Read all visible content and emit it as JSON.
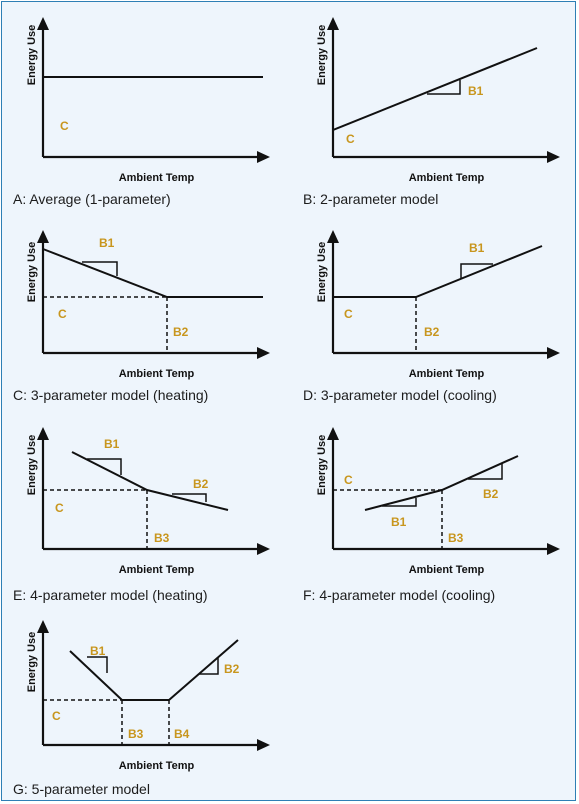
{
  "x_axis_label": "Ambient Temp",
  "y_axis_label": "Energy Use",
  "label_color": "#c8961e",
  "border_color": "#2e7fb5",
  "panels": [
    {
      "id": "A",
      "caption": "A: Average (1-parameter)",
      "labels": [
        "C"
      ]
    },
    {
      "id": "B",
      "caption": "B: 2-parameter model",
      "labels": [
        "B1",
        "C"
      ]
    },
    {
      "id": "C",
      "caption": "C: 3-parameter model (heating)",
      "labels": [
        "B1",
        "C",
        "B2"
      ]
    },
    {
      "id": "D",
      "caption": "D: 3-parameter model (cooling)",
      "labels": [
        "B1",
        "C",
        "B2"
      ]
    },
    {
      "id": "E",
      "caption": "E: 4-parameter model (heating)",
      "labels": [
        "B1",
        "B2",
        "C",
        "B3"
      ]
    },
    {
      "id": "F",
      "caption": "F: 4-parameter model (cooling)",
      "labels": [
        "C",
        "B2",
        "B1",
        "B3"
      ]
    },
    {
      "id": "G",
      "caption": "G: 5-parameter model",
      "labels": [
        "B1",
        "B2",
        "C",
        "B3",
        "B4"
      ]
    }
  ]
}
